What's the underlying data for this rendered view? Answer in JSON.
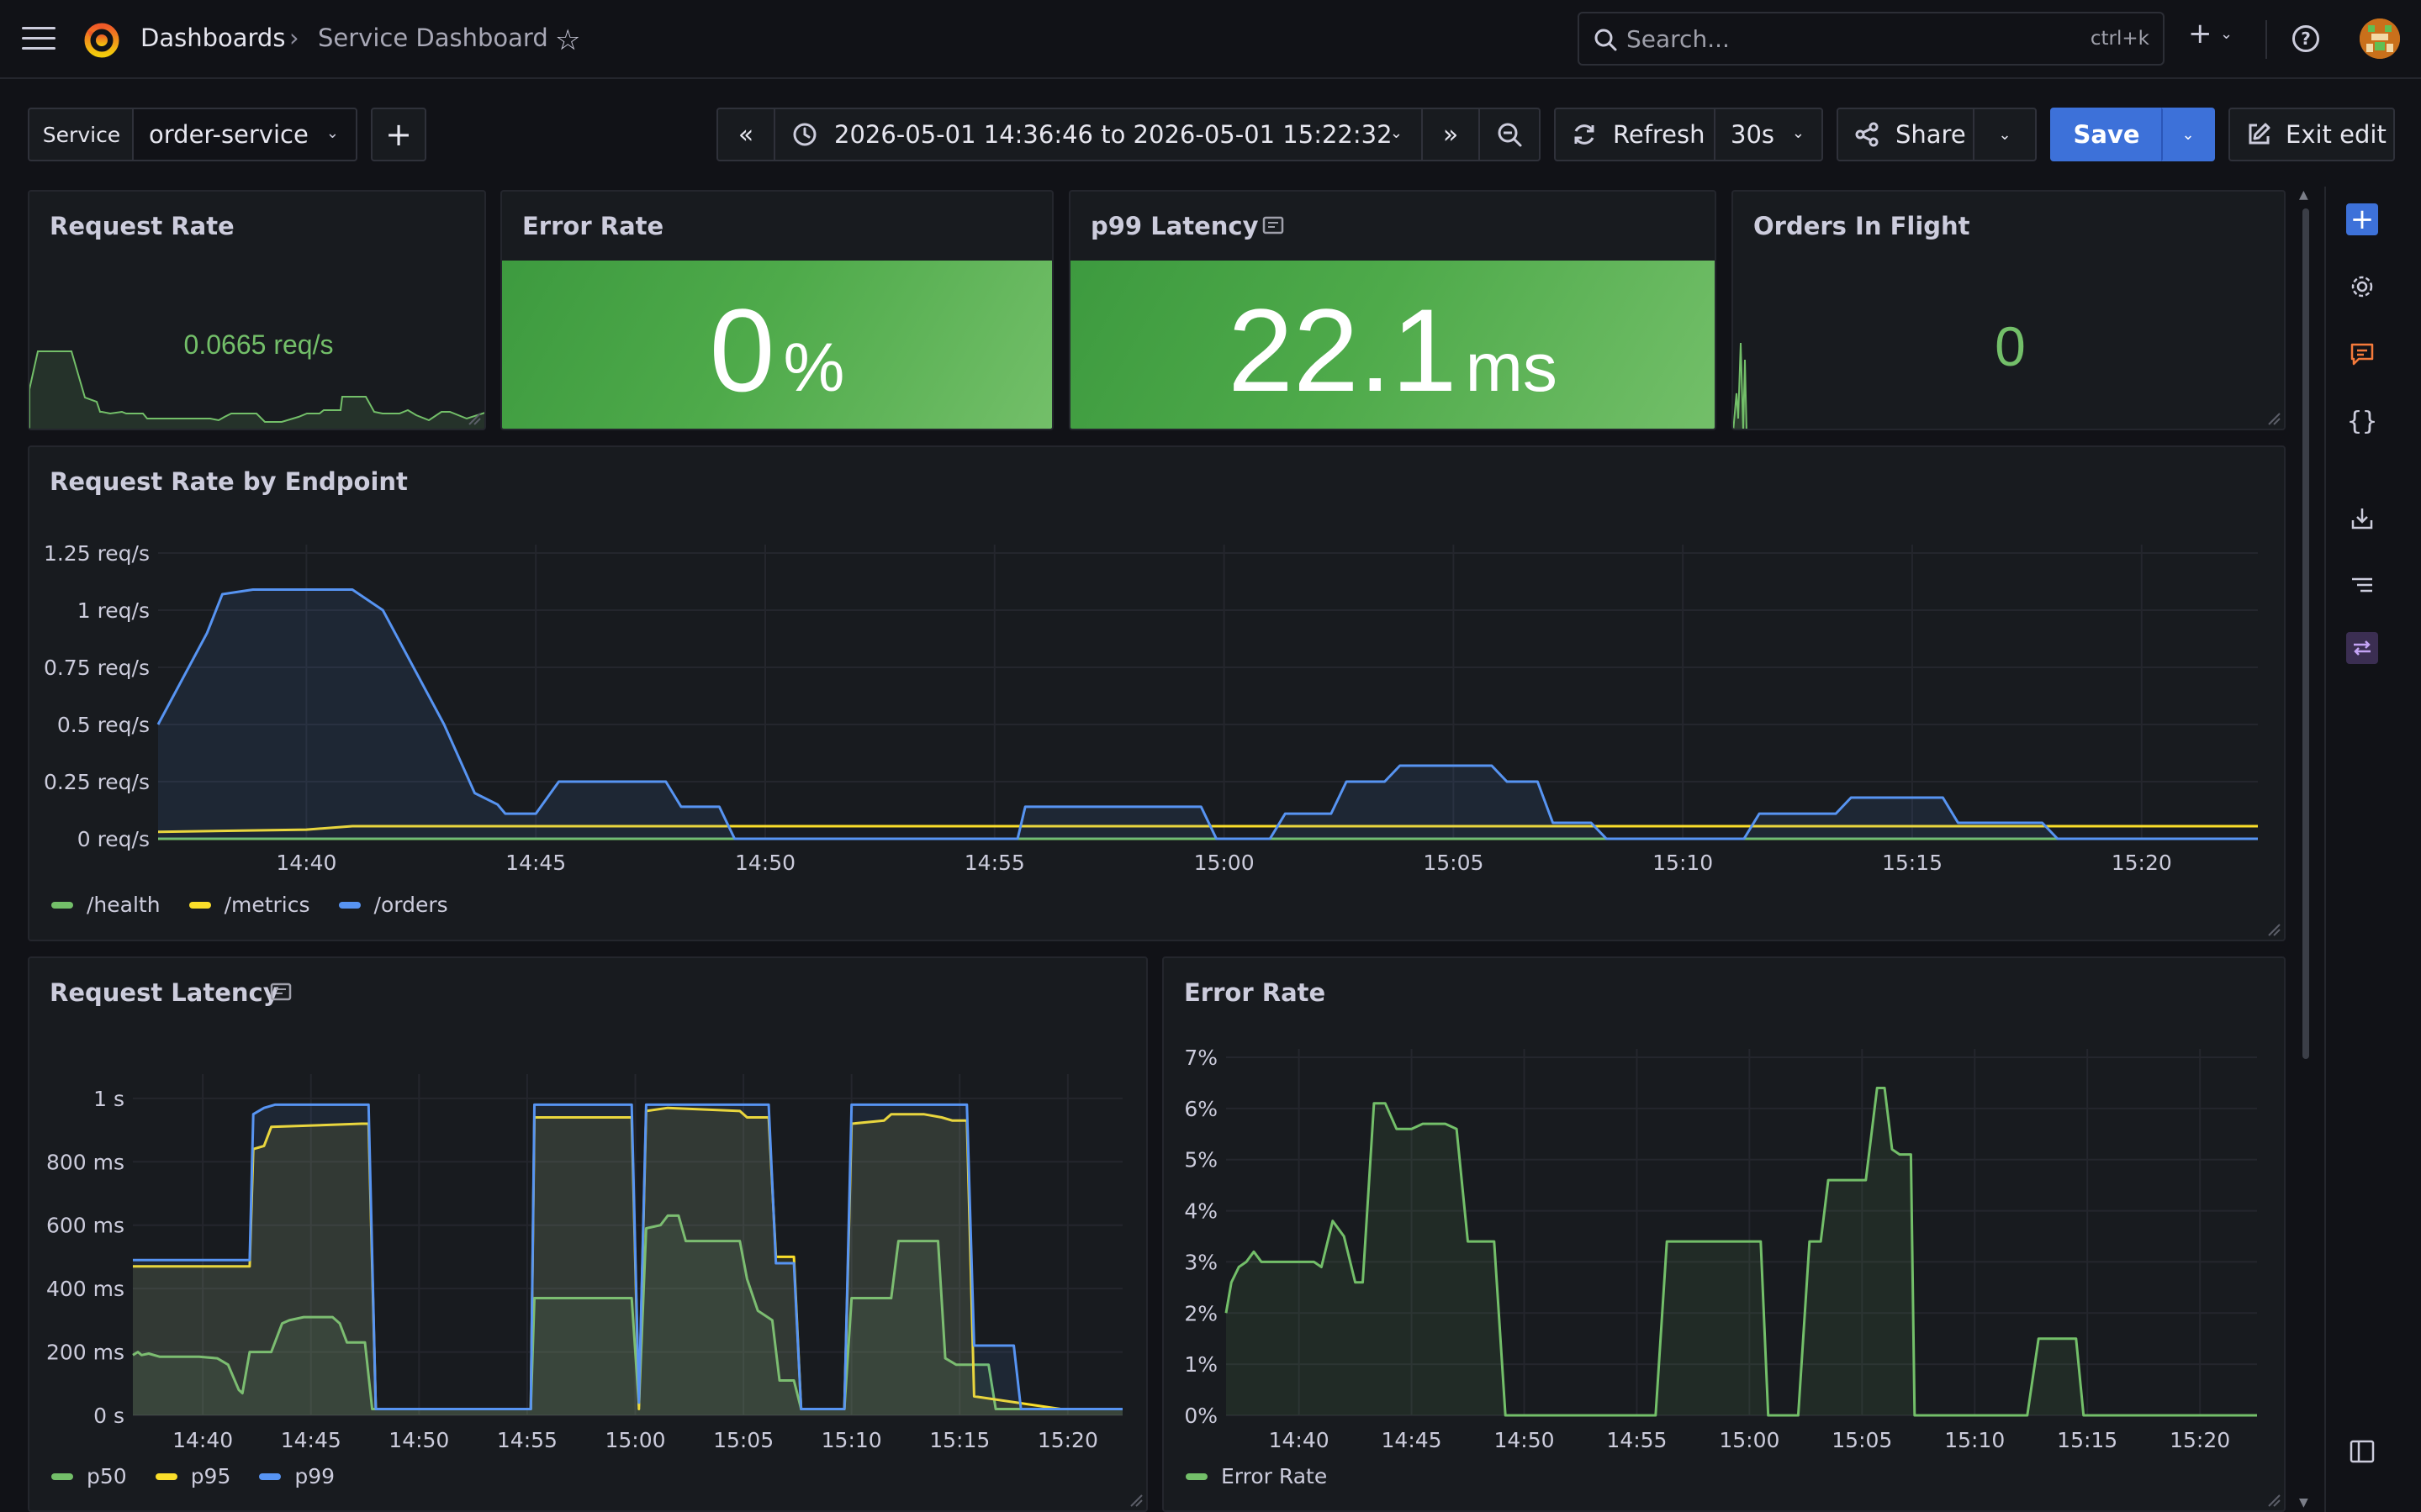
{
  "header": {
    "breadcrumb_root": "Dashboards",
    "breadcrumb_sep": "›",
    "breadcrumb_current": "Service Dashboard",
    "search_placeholder": "Search...",
    "search_shortcut": "ctrl+k"
  },
  "toolbar": {
    "variable_label": "Service",
    "variable_value": "order-service",
    "add_label": "+",
    "time_range": "2026-05-01 14:36:46 to 2026-05-01 15:22:32",
    "refresh_label": "Refresh",
    "refresh_interval": "30s",
    "share_label": "Share",
    "save_label": "Save",
    "exit_label": "Exit edit"
  },
  "colors": {
    "green": "#73bf69",
    "yellow": "#fade2a",
    "blue": "#5794f2",
    "accent": "#3d71d9"
  },
  "panels": {
    "request_rate": {
      "title": "Request Rate",
      "value": "0.0665 req/s"
    },
    "error_rate_stat": {
      "title": "Error Rate",
      "value": "0",
      "unit": "%"
    },
    "p99_latency": {
      "title": "p99 Latency",
      "value": "22.1",
      "unit": "ms"
    },
    "orders_in_flight": {
      "title": "Orders In Flight",
      "value": "0"
    },
    "rate_by_endpoint": {
      "title": "Request Rate by Endpoint"
    },
    "request_latency": {
      "title": "Request Latency"
    },
    "error_rate_chart": {
      "title": "Error Rate"
    }
  },
  "chart_data": [
    {
      "id": "rate_by_endpoint",
      "type": "line",
      "x_ticks": [
        "14:40",
        "14:45",
        "14:50",
        "14:55",
        "15:00",
        "15:05",
        "15:10",
        "15:15",
        "15:20"
      ],
      "xlim": [
        "14:36:46",
        "15:22:32"
      ],
      "y_ticks": [
        "1.25 req/s",
        "1 req/s",
        "0.75 req/s",
        "0.5 req/s",
        "0.25 req/s",
        "0 req/s"
      ],
      "ylim": [
        0,
        1.25
      ],
      "legend_position": "bottom-left",
      "series": [
        {
          "name": "/health",
          "color": "#73bf69",
          "points": [
            [
              "14:36:46",
              0.0
            ],
            [
              "15:22:32",
              0.0
            ]
          ]
        },
        {
          "name": "/metrics",
          "color": "#fade2a",
          "points": [
            [
              "14:36:46",
              0.03
            ],
            [
              "14:40",
              0.04
            ],
            [
              "14:41",
              0.055
            ],
            [
              "14:44",
              0.055
            ],
            [
              "15:22:32",
              0.055
            ]
          ]
        },
        {
          "name": "/orders",
          "color": "#5794f2",
          "points": [
            [
              "14:36:46",
              0.5
            ],
            [
              "14:37:50",
              0.9
            ],
            [
              "14:38:10",
              1.07
            ],
            [
              "14:38:50",
              1.09
            ],
            [
              "14:41:00",
              1.09
            ],
            [
              "14:41:40",
              1.0
            ],
            [
              "14:43:00",
              0.5
            ],
            [
              "14:43:40",
              0.2
            ],
            [
              "14:44:10",
              0.15
            ],
            [
              "14:44:20",
              0.11
            ],
            [
              "14:45:00",
              0.11
            ],
            [
              "14:45:30",
              0.25
            ],
            [
              "14:47:50",
              0.25
            ],
            [
              "14:48:10",
              0.14
            ],
            [
              "14:49:00",
              0.14
            ],
            [
              "14:49:20",
              0.0
            ],
            [
              "14:55:30",
              0.0
            ],
            [
              "14:55:40",
              0.14
            ],
            [
              "14:59:30",
              0.14
            ],
            [
              "14:59:50",
              0.0
            ],
            [
              "15:01:00",
              0.0
            ],
            [
              "15:01:20",
              0.11
            ],
            [
              "15:02:20",
              0.11
            ],
            [
              "15:02:40",
              0.25
            ],
            [
              "15:03:30",
              0.25
            ],
            [
              "15:03:50",
              0.32
            ],
            [
              "15:05:50",
              0.32
            ],
            [
              "15:06:10",
              0.25
            ],
            [
              "15:06:50",
              0.25
            ],
            [
              "15:07:10",
              0.07
            ],
            [
              "15:08:00",
              0.07
            ],
            [
              "15:08:20",
              0.0
            ],
            [
              "15:11:20",
              0.0
            ],
            [
              "15:11:40",
              0.11
            ],
            [
              "15:13:20",
              0.11
            ],
            [
              "15:13:40",
              0.18
            ],
            [
              "15:15:40",
              0.18
            ],
            [
              "15:16:00",
              0.07
            ],
            [
              "15:17:50",
              0.07
            ],
            [
              "15:18:10",
              0.0
            ],
            [
              "15:22:32",
              0.0
            ]
          ]
        }
      ]
    },
    {
      "id": "request_latency",
      "type": "area",
      "x_ticks": [
        "14:40",
        "14:45",
        "14:50",
        "14:55",
        "15:00",
        "15:05",
        "15:10",
        "15:15",
        "15:20"
      ],
      "xlim": [
        "14:36:46",
        "15:22:32"
      ],
      "y_ticks": [
        "1 s",
        "800 ms",
        "600 ms",
        "400 ms",
        "200 ms",
        "0 s"
      ],
      "ylim": [
        0,
        1050
      ],
      "legend_position": "bottom-left",
      "series": [
        {
          "name": "p50",
          "color": "#73bf69",
          "points": [
            [
              "14:36:46",
              190
            ],
            [
              "14:37:00",
              200
            ],
            [
              "14:37:10",
              190
            ],
            [
              "14:37:30",
              195
            ],
            [
              "14:38:00",
              185
            ],
            [
              "14:39:50",
              185
            ],
            [
              "14:40:40",
              180
            ],
            [
              "14:41:10",
              160
            ],
            [
              "14:41:40",
              80
            ],
            [
              "14:41:50",
              70
            ],
            [
              "14:42:10",
              200
            ],
            [
              "14:43:10",
              200
            ],
            [
              "14:43:40",
              290
            ],
            [
              "14:44:00",
              300
            ],
            [
              "14:44:40",
              310
            ],
            [
              "14:46:00",
              310
            ],
            [
              "14:46:20",
              290
            ],
            [
              "14:46:40",
              230
            ],
            [
              "14:47:30",
              230
            ],
            [
              "14:47:50",
              20
            ],
            [
              "14:53:30",
              20
            ],
            [
              "14:55:00",
              20
            ],
            [
              "14:55:10",
              20
            ],
            [
              "14:55:20",
              370
            ],
            [
              "14:59:50",
              370
            ],
            [
              "15:00:10",
              30
            ],
            [
              "15:00:30",
              590
            ],
            [
              "15:01:10",
              600
            ],
            [
              "15:01:30",
              630
            ],
            [
              "15:02:00",
              630
            ],
            [
              "15:02:20",
              550
            ],
            [
              "15:04:50",
              550
            ],
            [
              "15:05:10",
              430
            ],
            [
              "15:05:40",
              330
            ],
            [
              "15:06:20",
              300
            ],
            [
              "15:06:40",
              110
            ],
            [
              "15:07:20",
              110
            ],
            [
              "15:07:40",
              20
            ],
            [
              "15:09:40",
              20
            ],
            [
              "15:10:00",
              370
            ],
            [
              "15:11:50",
              370
            ],
            [
              "15:12:10",
              550
            ],
            [
              "15:14:00",
              550
            ],
            [
              "15:14:20",
              180
            ],
            [
              "15:14:50",
              160
            ],
            [
              "15:16:20",
              160
            ],
            [
              "15:16:40",
              20
            ],
            [
              "15:19:30",
              20
            ],
            [
              "15:20:00",
              20
            ],
            [
              "15:22:32",
              20
            ]
          ]
        },
        {
          "name": "p95",
          "color": "#fade2a",
          "points": [
            [
              "14:36:46",
              470
            ],
            [
              "14:42:10",
              470
            ],
            [
              "14:42:20",
              840
            ],
            [
              "14:42:50",
              850
            ],
            [
              "14:43:10",
              910
            ],
            [
              "14:47:20",
              920
            ],
            [
              "14:47:40",
              920
            ],
            [
              "14:48:00",
              20
            ],
            [
              "14:55:10",
              20
            ],
            [
              "14:55:20",
              940
            ],
            [
              "14:59:50",
              940
            ],
            [
              "15:00:10",
              20
            ],
            [
              "15:00:30",
              960
            ],
            [
              "15:01:30",
              970
            ],
            [
              "15:04:50",
              960
            ],
            [
              "15:05:10",
              940
            ],
            [
              "15:06:10",
              940
            ],
            [
              "15:06:30",
              500
            ],
            [
              "15:07:20",
              500
            ],
            [
              "15:07:40",
              20
            ],
            [
              "15:09:40",
              20
            ],
            [
              "15:10:00",
              920
            ],
            [
              "15:11:30",
              930
            ],
            [
              "15:11:50",
              950
            ],
            [
              "15:13:20",
              950
            ],
            [
              "15:14:10",
              940
            ],
            [
              "15:14:40",
              930
            ],
            [
              "15:15:20",
              930
            ],
            [
              "15:15:40",
              60
            ],
            [
              "15:19:40",
              20
            ],
            [
              "15:22:32",
              20
            ]
          ]
        },
        {
          "name": "p99",
          "color": "#5794f2",
          "points": [
            [
              "14:36:46",
              490
            ],
            [
              "14:42:10",
              490
            ],
            [
              "14:42:20",
              950
            ],
            [
              "14:42:50",
              970
            ],
            [
              "14:43:20",
              980
            ],
            [
              "14:47:20",
              980
            ],
            [
              "14:47:40",
              980
            ],
            [
              "14:48:00",
              20
            ],
            [
              "14:55:10",
              20
            ],
            [
              "14:55:20",
              980
            ],
            [
              "14:59:50",
              980
            ],
            [
              "15:00:10",
              40
            ],
            [
              "15:00:30",
              980
            ],
            [
              "15:06:10",
              980
            ],
            [
              "15:06:30",
              480
            ],
            [
              "15:07:20",
              480
            ],
            [
              "15:07:40",
              20
            ],
            [
              "15:09:40",
              20
            ],
            [
              "15:10:00",
              980
            ],
            [
              "15:15:20",
              980
            ],
            [
              "15:15:40",
              220
            ],
            [
              "15:17:30",
              220
            ],
            [
              "15:17:50",
              20
            ],
            [
              "15:22:32",
              20
            ]
          ]
        }
      ]
    },
    {
      "id": "error_rate_chart",
      "type": "area",
      "x_ticks": [
        "14:40",
        "14:45",
        "14:50",
        "14:55",
        "15:00",
        "15:05",
        "15:10",
        "15:15",
        "15:20"
      ],
      "xlim": [
        "14:36:46",
        "15:22:32"
      ],
      "y_ticks": [
        "7%",
        "6%",
        "5%",
        "4%",
        "3%",
        "2%",
        "1%",
        "0%"
      ],
      "ylim": [
        0,
        7
      ],
      "legend_position": "bottom-left",
      "series": [
        {
          "name": "Error Rate",
          "color": "#73bf69",
          "points": [
            [
              "14:36:46",
              2.0
            ],
            [
              "14:37:00",
              2.6
            ],
            [
              "14:37:20",
              2.9
            ],
            [
              "14:37:40",
              3.0
            ],
            [
              "14:38:00",
              3.2
            ],
            [
              "14:38:20",
              3.0
            ],
            [
              "14:40:40",
              3.0
            ],
            [
              "14:41:00",
              2.9
            ],
            [
              "14:41:30",
              3.8
            ],
            [
              "14:42:00",
              3.5
            ],
            [
              "14:42:30",
              2.6
            ],
            [
              "14:42:50",
              2.6
            ],
            [
              "14:43:20",
              6.1
            ],
            [
              "14:43:50",
              6.1
            ],
            [
              "14:44:20",
              5.6
            ],
            [
              "14:45:00",
              5.6
            ],
            [
              "14:45:30",
              5.7
            ],
            [
              "14:46:30",
              5.7
            ],
            [
              "14:47:00",
              5.6
            ],
            [
              "14:47:30",
              3.4
            ],
            [
              "14:48:40",
              3.4
            ],
            [
              "14:49:10",
              0.0
            ],
            [
              "14:55:50",
              0.0
            ],
            [
              "14:56:20",
              3.4
            ],
            [
              "15:00:30",
              3.4
            ],
            [
              "15:00:50",
              0.0
            ],
            [
              "15:02:10",
              0.0
            ],
            [
              "15:02:40",
              3.4
            ],
            [
              "15:03:10",
              3.4
            ],
            [
              "15:03:30",
              4.6
            ],
            [
              "15:05:10",
              4.6
            ],
            [
              "15:05:40",
              6.4
            ],
            [
              "15:06:00",
              6.4
            ],
            [
              "15:06:20",
              5.2
            ],
            [
              "15:06:40",
              5.1
            ],
            [
              "15:07:10",
              5.1
            ],
            [
              "15:07:20",
              0.0
            ],
            [
              "15:12:20",
              0.0
            ],
            [
              "15:12:50",
              1.5
            ],
            [
              "15:14:30",
              1.5
            ],
            [
              "15:14:50",
              0.0
            ],
            [
              "15:22:32",
              0.0
            ]
          ]
        }
      ]
    }
  ]
}
